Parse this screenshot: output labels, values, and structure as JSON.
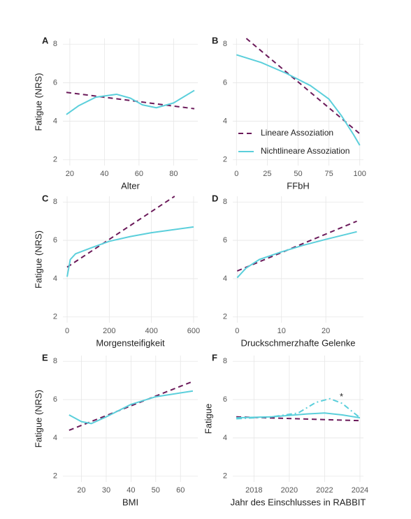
{
  "chart_data": [
    {
      "type": "line",
      "title": "A",
      "x_label": "Alter",
      "y_label": "Fatigue (NRS)",
      "xlim": [
        16,
        94
      ],
      "xticks": [
        20,
        40,
        60,
        80
      ],
      "ylim": [
        1.7,
        8.3
      ],
      "yticks": [
        2,
        4,
        6,
        8
      ],
      "grid": true,
      "series": [
        {
          "color": "#6b1a5a",
          "linestyle": "dashed",
          "x": [
            18,
            92
          ],
          "values": [
            5.5,
            4.65
          ]
        },
        {
          "color": "#5bcfdb",
          "linestyle": "solid",
          "x": [
            18,
            25,
            35,
            47,
            55,
            62,
            70,
            80,
            92
          ],
          "values": [
            4.35,
            4.8,
            5.25,
            5.4,
            5.2,
            4.85,
            4.7,
            4.95,
            5.6
          ]
        }
      ]
    },
    {
      "type": "line",
      "title": "B",
      "x_label": "FFbH",
      "xlim": [
        -3,
        103
      ],
      "xticks": [
        0,
        25,
        50,
        75,
        100
      ],
      "ylim": [
        1.7,
        8.3
      ],
      "yticks": [
        2,
        4,
        6,
        8
      ],
      "grid": true,
      "legend": "lower left",
      "series": [
        {
          "name": "Lineare Assoziation",
          "color": "#6b1a5a",
          "linestyle": "dashed",
          "x": [
            8,
            100
          ],
          "values": [
            8.3,
            3.35
          ]
        },
        {
          "name": "Nichtlineare Assoziation",
          "color": "#5bcfdb",
          "linestyle": "solid",
          "x": [
            0,
            20,
            40,
            60,
            75,
            85,
            95,
            100
          ],
          "values": [
            7.45,
            7.05,
            6.5,
            5.85,
            5.15,
            4.3,
            3.3,
            2.75
          ]
        }
      ]
    },
    {
      "type": "line",
      "title": "C",
      "x_label": "Morgensteifigkeit",
      "y_label": "Fatigue (NRS)",
      "xlim": [
        -20,
        620
      ],
      "xticks": [
        0,
        200,
        400,
        600
      ],
      "ylim": [
        1.7,
        8.3
      ],
      "yticks": [
        2,
        4,
        6,
        8
      ],
      "grid": true,
      "series": [
        {
          "color": "#6b1a5a",
          "linestyle": "dashed",
          "x": [
            0,
            510
          ],
          "values": [
            4.6,
            8.3
          ]
        },
        {
          "color": "#5bcfdb",
          "linestyle": "solid",
          "x": [
            0,
            15,
            40,
            100,
            200,
            300,
            400,
            500,
            600
          ],
          "values": [
            4.1,
            5.0,
            5.3,
            5.55,
            5.95,
            6.2,
            6.4,
            6.55,
            6.7
          ]
        }
      ]
    },
    {
      "type": "line",
      "title": "D",
      "x_label": "Druckschmerzhafte Gelenke",
      "xlim": [
        -1,
        28.5
      ],
      "xticks": [
        0,
        10,
        20
      ],
      "ylim": [
        1.7,
        8.3
      ],
      "yticks": [
        2,
        4,
        6,
        8
      ],
      "grid": true,
      "series": [
        {
          "color": "#6b1a5a",
          "linestyle": "dashed",
          "x": [
            0,
            27
          ],
          "values": [
            4.4,
            7.0
          ]
        },
        {
          "color": "#5bcfdb",
          "linestyle": "solid",
          "x": [
            0,
            2,
            5,
            10,
            15,
            20,
            27
          ],
          "values": [
            4.05,
            4.55,
            5.0,
            5.4,
            5.75,
            6.05,
            6.45
          ]
        }
      ]
    },
    {
      "type": "line",
      "title": "E",
      "x_label": "BMI",
      "y_label": "Fatigue (NRS)",
      "xlim": [
        12.5,
        67
      ],
      "xticks": [
        20,
        30,
        40,
        50,
        60
      ],
      "ylim": [
        1.7,
        8.3
      ],
      "yticks": [
        2,
        4,
        6,
        8
      ],
      "grid": true,
      "series": [
        {
          "color": "#6b1a5a",
          "linestyle": "dashed",
          "x": [
            15,
            65
          ],
          "values": [
            4.4,
            6.95
          ]
        },
        {
          "color": "#5bcfdb",
          "linestyle": "solid",
          "x": [
            15,
            20,
            24,
            30,
            40,
            50,
            65
          ],
          "values": [
            5.2,
            4.85,
            4.75,
            5.1,
            5.75,
            6.15,
            6.45
          ]
        }
      ]
    },
    {
      "type": "line",
      "title": "F",
      "x_label": "Jahr des Einschlusses in RABBIT",
      "y_label": "Fatigue",
      "annotation": "*",
      "xlim": [
        2016.8,
        2024.2
      ],
      "xticks": [
        2018,
        2020,
        2022,
        2024
      ],
      "ylim": [
        1.7,
        8.3
      ],
      "yticks": [
        2,
        4,
        6,
        8
      ],
      "grid": true,
      "series": [
        {
          "color": "#6b1a5a",
          "linestyle": "dashed",
          "x": [
            2017,
            2024
          ],
          "values": [
            5.1,
            4.9
          ]
        },
        {
          "color": "#5bcfdb",
          "linestyle": "solid",
          "x": [
            2017,
            2019,
            2021,
            2022,
            2023,
            2024
          ],
          "values": [
            5.05,
            5.1,
            5.25,
            5.3,
            5.2,
            5.05
          ]
        },
        {
          "color": "#5bcfdb",
          "linestyle": "dotdash",
          "x": [
            2017,
            2019,
            2020.5,
            2021.5,
            2022.3,
            2023,
            2024
          ],
          "values": [
            5.0,
            5.1,
            5.3,
            5.85,
            6.05,
            5.8,
            5.05
          ]
        }
      ]
    }
  ]
}
